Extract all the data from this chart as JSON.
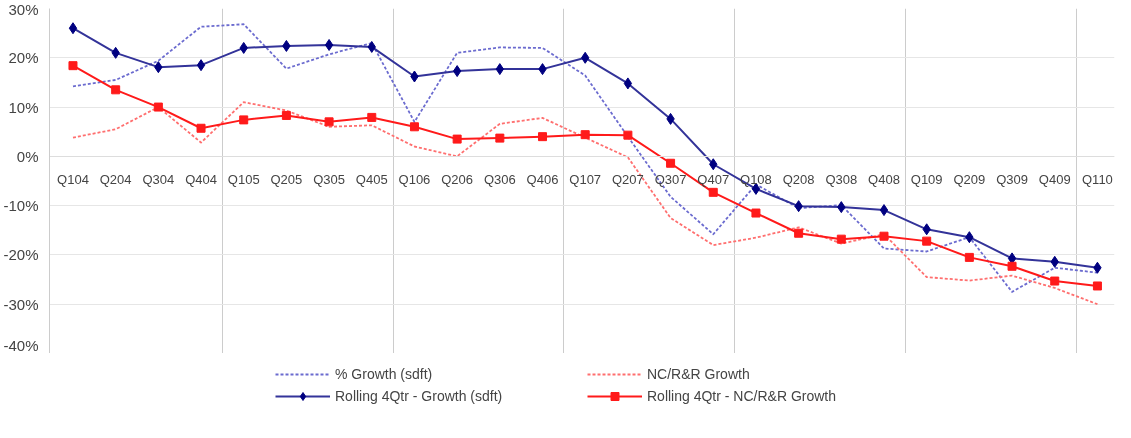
{
  "chart_data": {
    "type": "line",
    "categories": [
      "Q104",
      "Q204",
      "Q304",
      "Q404",
      "Q105",
      "Q205",
      "Q305",
      "Q405",
      "Q106",
      "Q206",
      "Q306",
      "Q406",
      "Q107",
      "Q207",
      "Q307",
      "Q407",
      "Q108",
      "Q208",
      "Q308",
      "Q408",
      "Q109",
      "Q209",
      "Q309",
      "Q409",
      "Q110"
    ],
    "series": [
      {
        "name": "% Growth (sdft)",
        "color": "#6b6bcf",
        "line_style": "dotted",
        "marker": "none",
        "values": [
          14.2,
          15.5,
          19.4,
          26.3,
          26.8,
          17.8,
          20.7,
          23,
          7,
          21,
          22.1,
          22,
          16.4,
          4,
          -8.2,
          -15.8,
          -5.7,
          -10.5,
          -9.9,
          -18.7,
          -19.3,
          -16.4,
          -27.5,
          -22.6,
          -23.6
        ]
      },
      {
        "name": "NC/R&R Growth",
        "color": "#ff6f6f",
        "line_style": "dotted",
        "marker": "none",
        "values": [
          3.8,
          5.5,
          10,
          2.8,
          11,
          9.3,
          6,
          6.3,
          2,
          0,
          6.6,
          7.8,
          3.8,
          -0.2,
          -12.5,
          -18,
          -16.5,
          -14.4,
          -17.7,
          -15.8,
          -24.5,
          -25.2,
          -24.2,
          -26.7,
          -30
        ]
      },
      {
        "name": "Rolling 4Qtr - Growth (sdft)",
        "color": "#333399",
        "line_style": "solid",
        "marker": "diamond",
        "values": [
          26,
          21,
          18.1,
          18.5,
          22,
          22.4,
          22.6,
          22.2,
          16.2,
          17.3,
          17.7,
          17.7,
          20,
          14.8,
          7.6,
          -1.6,
          -6.6,
          -10.1,
          -10.3,
          -10.9,
          -14.8,
          -16.4,
          -20.7,
          -21.4,
          -22.6
        ]
      },
      {
        "name": "Rolling 4Qtr - NC/R&R Growth",
        "color": "#ff1a1a",
        "line_style": "solid",
        "marker": "square",
        "values": [
          18.4,
          13.5,
          10,
          5.7,
          7.4,
          8.3,
          7,
          7.9,
          6,
          3.5,
          3.7,
          4,
          4.4,
          4.3,
          -1.4,
          -7.3,
          -11.5,
          -15.6,
          -16.8,
          -16.2,
          -17.2,
          -20.5,
          -22.3,
          -25.3,
          -26.3
        ]
      }
    ],
    "ylim": [
      -40,
      30
    ],
    "yticks": [
      {
        "value": -40,
        "label": "-40%"
      },
      {
        "value": -30,
        "label": "-30%"
      },
      {
        "value": -20,
        "label": "-20%"
      },
      {
        "value": -10,
        "label": "-10%"
      },
      {
        "value": 0,
        "label": "0%"
      },
      {
        "value": 10,
        "label": "10%"
      },
      {
        "value": 20,
        "label": "20%"
      },
      {
        "value": 30,
        "label": "30%"
      }
    ],
    "grid": true,
    "legend": "bottom"
  }
}
